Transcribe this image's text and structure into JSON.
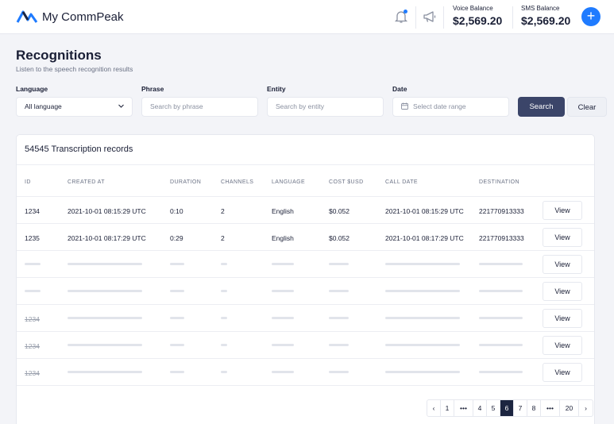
{
  "header": {
    "app_name": "My CommPeak",
    "voice_label": "Voice Balance",
    "voice_amount": "$2,569.20",
    "sms_label": "SMS Balance",
    "sms_amount": "$2,569.20",
    "add_label": "+",
    "accent_color": "#1f7bff"
  },
  "page": {
    "title": "Recognitions",
    "subtitle": "Listen to the speech recognition results"
  },
  "filters": {
    "language_label": "Language",
    "language_value": "All language",
    "phrase_label": "Phrase",
    "phrase_placeholder": "Search by phrase",
    "entity_label": "Entity",
    "entity_placeholder": "Search by entity",
    "date_label": "Date",
    "date_placeholder": "Select date range",
    "search_label": "Search",
    "clear_label": "Clear"
  },
  "table": {
    "title": "54545 Transcription records",
    "headers": [
      "ID",
      "CREATED AT",
      "DURATION",
      "CHANNELS",
      "LANGUAGE",
      "COST $USD",
      "CALL DATE",
      "DESTINATION"
    ],
    "rows": [
      [
        "1234",
        "2021-10-01 08:15:29 UTC",
        "0:10",
        "2",
        "English",
        "$0.052",
        "2021-10-01 08:15:29 UTC",
        "221770913333"
      ],
      [
        "1235",
        "2021-10-01 08:17:29 UTC",
        "0:29",
        "2",
        "English",
        "$0.052",
        "2021-10-01 08:17:29 UTC",
        "221770913333"
      ]
    ],
    "ghost_ids": [
      "",
      "",
      "1234",
      "1234",
      "1234"
    ],
    "view_label": "View"
  },
  "pagination": [
    "‹",
    "1",
    "•••",
    "4",
    "5",
    "6",
    "7",
    "8",
    "•••",
    "20",
    "›"
  ],
  "pagination_active": "6"
}
